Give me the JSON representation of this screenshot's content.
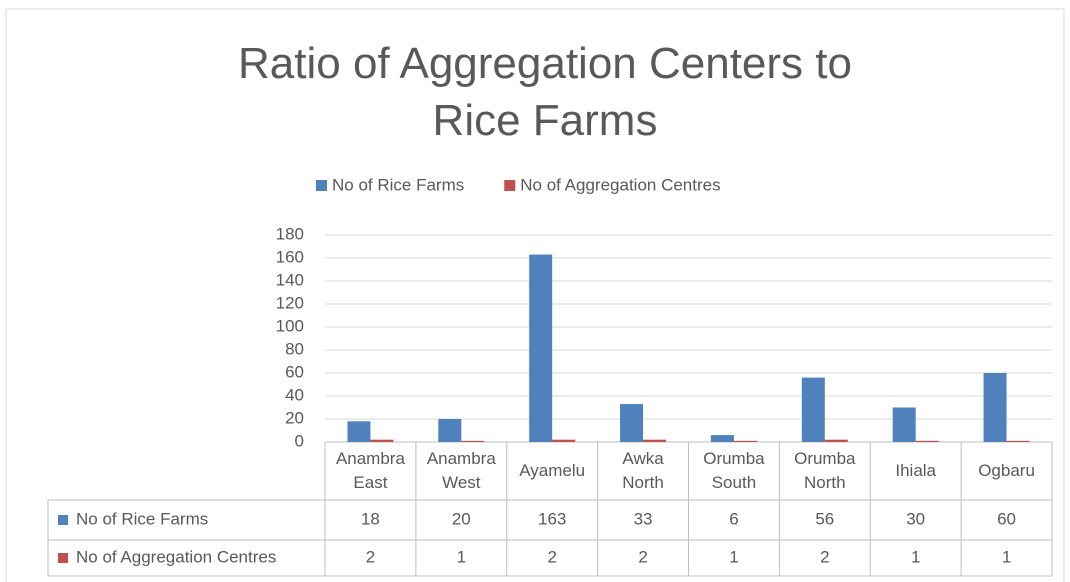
{
  "chart_data": {
    "type": "bar",
    "title": "Ratio of Aggregation Centers to Rice Farms",
    "categories": [
      "Anambra East",
      "Anambra West",
      "Ayamelu",
      "Awka North",
      "Orumba South",
      "Orumba North",
      "Ihiala",
      "Ogbaru"
    ],
    "series": [
      {
        "name": "No of Rice Farms",
        "color": "#4f81bd",
        "values": [
          18,
          20,
          163,
          33,
          6,
          56,
          30,
          60
        ]
      },
      {
        "name": "No of Aggregation Centres",
        "color": "#c0504d",
        "values": [
          2,
          1,
          2,
          2,
          1,
          2,
          1,
          1
        ]
      }
    ],
    "ylim": [
      0,
      180
    ],
    "yticks": [
      0,
      20,
      40,
      60,
      80,
      100,
      120,
      140,
      160,
      180
    ],
    "grid": true,
    "legend": "top",
    "data_table": true
  }
}
